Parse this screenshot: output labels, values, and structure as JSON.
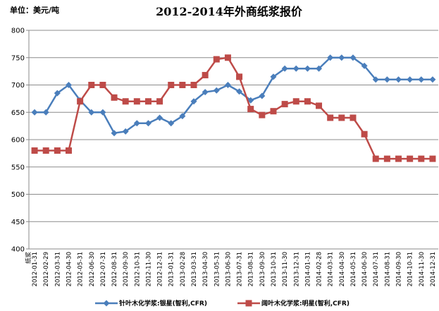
{
  "chart_data": {
    "type": "line",
    "title": "2012-2014年外商纸浆报价",
    "unit_label": "单位：美元/吨",
    "x_prefix": "纸浆",
    "categories": [
      "2012-01-31",
      "2012-02-29",
      "2012-03-31",
      "2012-04-30",
      "2012-05-31",
      "2012-06-30",
      "2012-07-31",
      "2012-08-31",
      "2012-09-30",
      "2012-10-31",
      "2012-11-30",
      "2012-12-31",
      "2013-01-31",
      "2013-02-28",
      "2013-03-31",
      "2013-04-30",
      "2013-05-31",
      "2013-06-30",
      "2013-07-31",
      "2013-08-31",
      "2013-09-30",
      "2013-10-31",
      "2013-11-30",
      "2013-12-31",
      "2014-01-31",
      "2014-02-28",
      "2014-03-31",
      "2014-04-30",
      "2014-05-31",
      "2014-06-30",
      "2014-07-31",
      "2014-08-31",
      "2014-09-30",
      "2014-10-31",
      "2014-11-30",
      "2014-12-31"
    ],
    "series": [
      {
        "name": "针叶木化学浆:银星(智利,CFR)",
        "color": "#4a7ebb",
        "marker": "diamond",
        "values": [
          650,
          650,
          685,
          700,
          672,
          650,
          650,
          612,
          615,
          630,
          630,
          640,
          630,
          643,
          670,
          687,
          690,
          700,
          688,
          672,
          680,
          715,
          730,
          730,
          730,
          730,
          750,
          750,
          750,
          735,
          710,
          710,
          710,
          710,
          710,
          710
        ]
      },
      {
        "name": "阔叶木化学浆:明星(智利,CFR)",
        "color": "#be4b48",
        "marker": "square",
        "values": [
          580,
          580,
          580,
          580,
          670,
          700,
          700,
          677,
          670,
          670,
          670,
          670,
          700,
          700,
          700,
          718,
          747,
          750,
          715,
          656,
          645,
          652,
          665,
          670,
          670,
          662,
          640,
          640,
          640,
          610,
          565,
          565,
          565,
          565,
          565,
          565
        ]
      }
    ],
    "ylim": [
      400,
      800
    ],
    "yticks": [
      400,
      450,
      500,
      550,
      600,
      650,
      700,
      750,
      800
    ],
    "grid": true,
    "legend_position": "bottom"
  }
}
